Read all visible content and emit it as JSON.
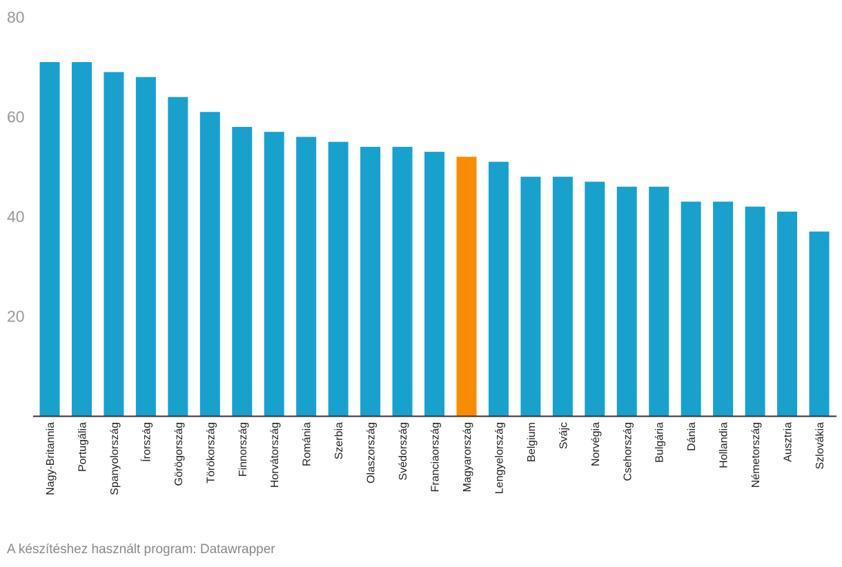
{
  "chart_data": {
    "type": "bar",
    "title": "",
    "xlabel": "",
    "ylabel": "",
    "ylim": [
      0,
      80
    ],
    "yticks": [
      20,
      40,
      60,
      80
    ],
    "categories": [
      "Nagy-Britannia",
      "Portugália",
      "Spanyolország",
      "Írország",
      "Görögország",
      "Törökország",
      "Finnország",
      "Horvátország",
      "Románia",
      "Szerbia",
      "Olaszország",
      "Svédország",
      "Franciaország",
      "Magyarország",
      "Lengyelország",
      "Belgium",
      "Svájc",
      "Norvégia",
      "Csehország",
      "Bulgária",
      "Dánia",
      "Hollandia",
      "Németország",
      "Ausztria",
      "Szlovákia"
    ],
    "values": [
      71,
      71,
      69,
      68,
      64,
      61,
      58,
      57,
      56,
      55,
      54,
      54,
      53,
      52,
      51,
      48,
      48,
      47,
      46,
      46,
      43,
      43,
      42,
      41,
      37
    ],
    "highlight": "Magyarország",
    "colors": {
      "bar": "#18a1cd",
      "highlight": "#fa8c00",
      "axis": "#333333"
    }
  },
  "footer": {
    "credit": "A készítéshez használt program: Datawrapper"
  }
}
